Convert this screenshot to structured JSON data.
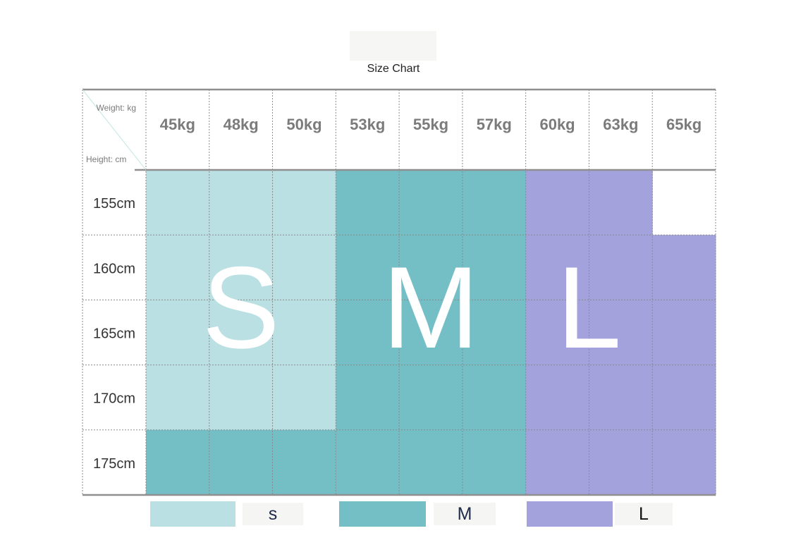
{
  "title": "Size Chart",
  "chart_data": {
    "type": "table",
    "corner": {
      "weight_label": "Weight: kg",
      "height_label": "Height: cm"
    },
    "weights": [
      "45kg",
      "48kg",
      "50kg",
      "53kg",
      "55kg",
      "57kg",
      "60kg",
      "63kg",
      "65kg"
    ],
    "heights": [
      "155cm",
      "160cm",
      "165cm",
      "170cm",
      "175cm"
    ],
    "grid": [
      [
        "S",
        "S",
        "S",
        "M",
        "M",
        "M",
        "L",
        "L",
        ""
      ],
      [
        "S",
        "S",
        "S",
        "M",
        "M",
        "M",
        "L",
        "L",
        "L"
      ],
      [
        "S",
        "S",
        "S",
        "M",
        "M",
        "M",
        "L",
        "L",
        "L"
      ],
      [
        "S",
        "S",
        "S",
        "M",
        "M",
        "M",
        "L",
        "L",
        "L"
      ],
      [
        "M",
        "M",
        "M",
        "M",
        "M",
        "M",
        "L",
        "L",
        "L"
      ]
    ],
    "size_letters": [
      "S",
      "M",
      "L"
    ],
    "colors": {
      "S": "#bae0e4",
      "M": "#74bec6",
      "L": "#a3a2dc"
    },
    "legend": [
      {
        "size": "S",
        "label": "s"
      },
      {
        "size": "M",
        "label": "M"
      },
      {
        "size": "L",
        "label": "L"
      }
    ]
  }
}
